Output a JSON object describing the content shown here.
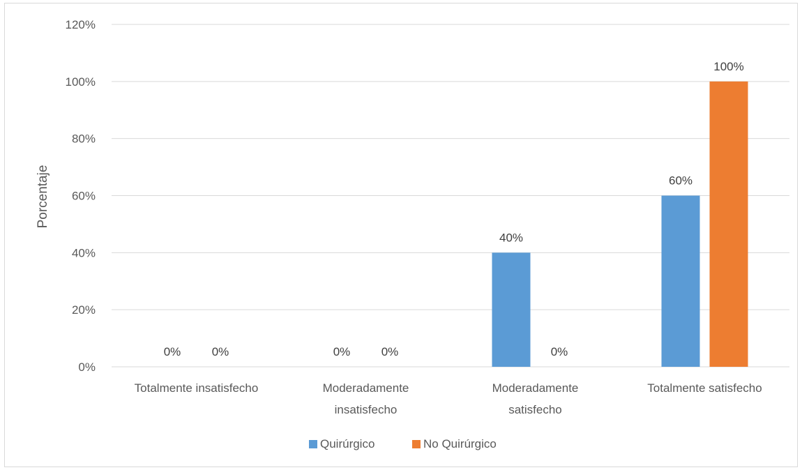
{
  "chart_data": {
    "type": "bar",
    "title": "",
    "xlabel": "",
    "ylabel": "Porcentaje",
    "ylim": [
      0,
      120
    ],
    "y_ticks": [
      0,
      20,
      40,
      60,
      80,
      100,
      120
    ],
    "y_tick_format": "percent",
    "grid": true,
    "legend_position": "bottom",
    "categories": [
      [
        "Totalmente insatisfecho"
      ],
      [
        "Moderadamente",
        "insatisfecho"
      ],
      [
        "Moderadamente",
        "satisfecho"
      ],
      [
        "Totalmente satisfecho"
      ]
    ],
    "series": [
      {
        "name": "Quirúrgico",
        "color": "#5b9bd5",
        "values": [
          0,
          0,
          40,
          60
        ],
        "labels": [
          "0%",
          "0%",
          "40%",
          "60%"
        ]
      },
      {
        "name": "No Quirúrgico",
        "color": "#ed7d31",
        "values": [
          0,
          0,
          0,
          100
        ],
        "labels": [
          "0%",
          "0%",
          "0%",
          "100%"
        ]
      }
    ]
  }
}
